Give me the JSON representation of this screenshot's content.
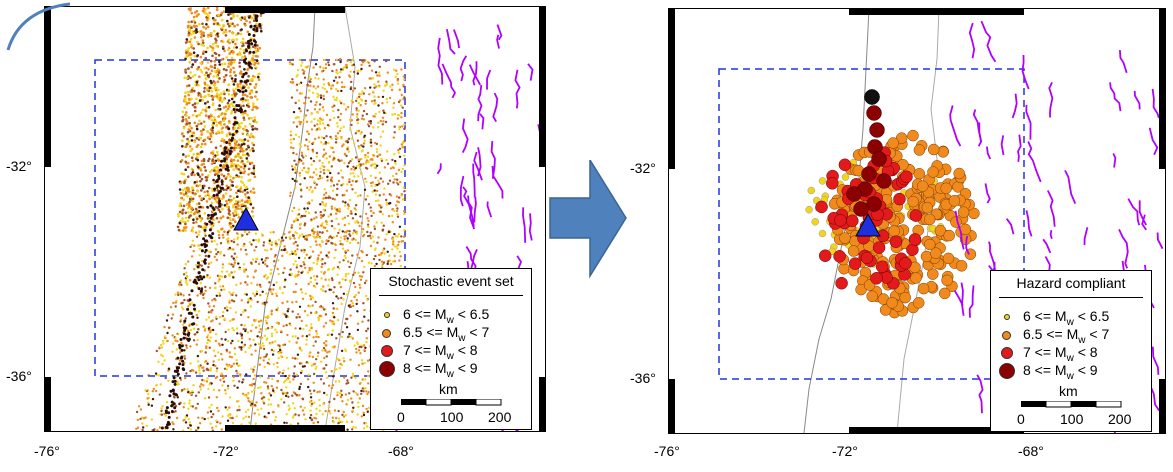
{
  "left_panel": {
    "legend_title": "Stochastic event set",
    "x_ticks": [
      "-76°",
      "-72°",
      "-68°"
    ],
    "y_ticks": [
      "-32°",
      "-36°"
    ]
  },
  "right_panel": {
    "legend_title": "Hazard compliant",
    "x_ticks": [
      "-76°",
      "-72°",
      "-68°"
    ],
    "y_ticks": [
      "-32°",
      "-36°"
    ]
  },
  "legend_entries": [
    {
      "prefix": "6 <= M",
      "sub": "w",
      "suffix": " < 6.5",
      "color": "#f2d51a"
    },
    {
      "prefix": "6.5 <= M",
      "sub": "w",
      "suffix": " < 7",
      "color": "#f08a1c"
    },
    {
      "prefix": "7 <= M",
      "sub": "w",
      "suffix": " < 8",
      "color": "#e31a1c"
    },
    {
      "prefix": "8 <= M",
      "sub": "w",
      "suffix": " < 9",
      "color": "#8b0000"
    }
  ],
  "scale_bar": {
    "unit": "km",
    "labels": [
      "0",
      "100",
      "200"
    ]
  },
  "colors": {
    "site_marker": "#1f2fe0",
    "region_box": "#2233dd",
    "faults": "#b000ff",
    "arrow": "#4f81bd"
  }
}
